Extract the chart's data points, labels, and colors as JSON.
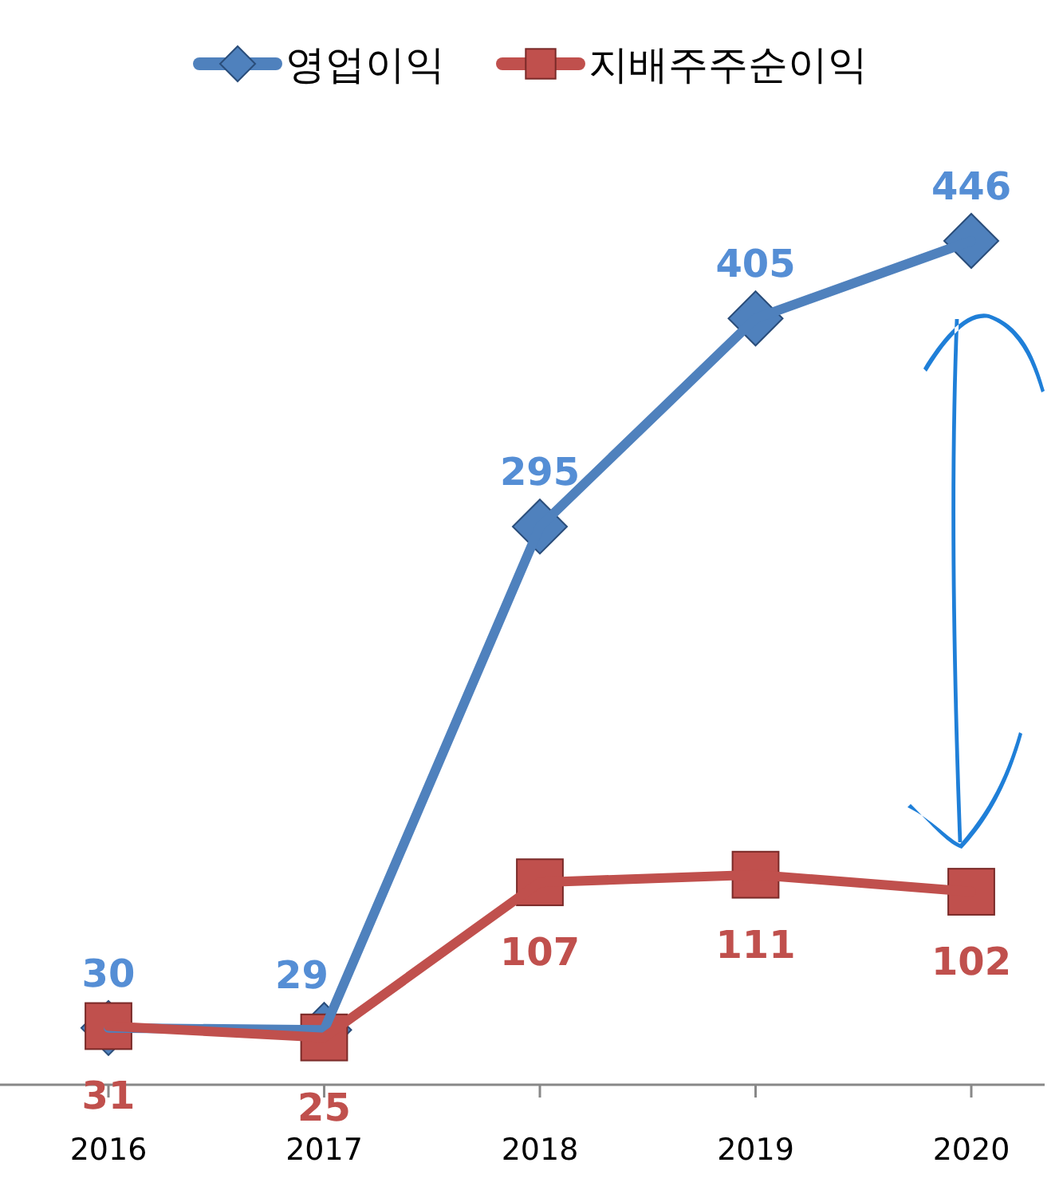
{
  "chart_data": {
    "type": "line",
    "categories": [
      "2016",
      "2017",
      "2018",
      "2019",
      "2020"
    ],
    "series": [
      {
        "name": "영업이익",
        "color": "#4f81bd",
        "marker": "diamond",
        "values": [
          30,
          29,
          295,
          405,
          446
        ]
      },
      {
        "name": "지배주주순이익",
        "color": "#c0504d",
        "marker": "square",
        "values": [
          31,
          25,
          107,
          111,
          102
        ]
      }
    ],
    "data_labels": true,
    "legend": "top",
    "tick_labels": "x"
  }
}
